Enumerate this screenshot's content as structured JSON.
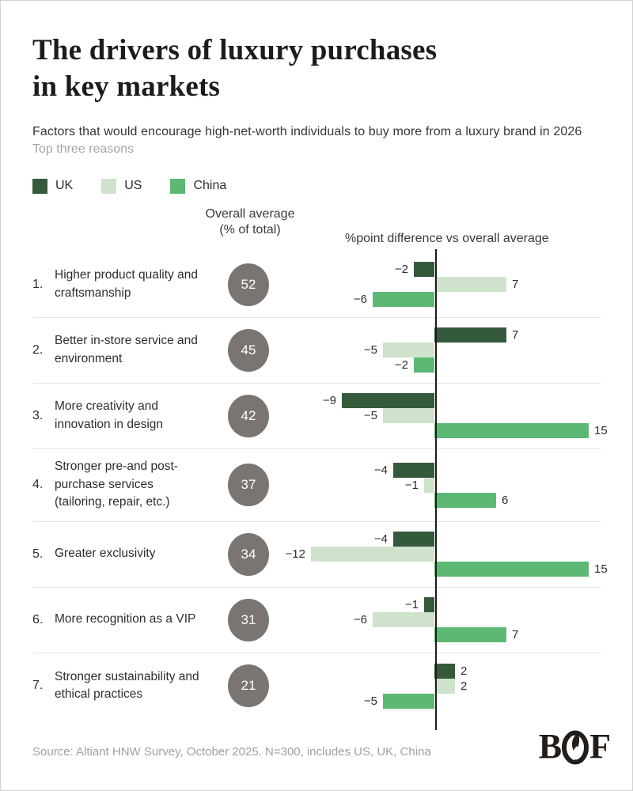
{
  "header": {
    "title_line1": "The drivers of luxury purchases",
    "title_line2": "in key markets",
    "subtitle": "Factors that would encourage high-net-worth individuals to buy more from a luxury brand in 2026",
    "subnote": "Top three reasons"
  },
  "legend": [
    {
      "label": "UK",
      "color": "#35593b"
    },
    {
      "label": "US",
      "color": "#cfe3cc"
    },
    {
      "label": "China",
      "color": "#5cb873"
    }
  ],
  "columns": {
    "average_header_line1": "Overall average",
    "average_header_line2": "(% of total)",
    "diff_header": "%point difference vs overall average"
  },
  "chart_data": {
    "type": "bar",
    "subtype": "horizontal-diverging",
    "title": "The drivers of luxury purchases in key markets",
    "series_names": [
      "UK",
      "US",
      "China"
    ],
    "xlim": [
      -15,
      15
    ],
    "value_unit": "percentage points vs overall average",
    "rows": [
      {
        "rank": "1.",
        "label": "Higher product quality and craftsmanship",
        "average": 52,
        "values": {
          "UK": -2,
          "US": 7,
          "China": -6
        }
      },
      {
        "rank": "2.",
        "label": "Better in-store service and environment",
        "average": 45,
        "values": {
          "UK": 7,
          "US": -5,
          "China": -2
        }
      },
      {
        "rank": "3.",
        "label": "More creativity and innovation in design",
        "average": 42,
        "values": {
          "UK": -9,
          "US": -5,
          "China": 15
        }
      },
      {
        "rank": "4.",
        "label": "Stronger pre-and post-purchase services (tailoring, repair, etc.)",
        "average": 37,
        "values": {
          "UK": -4,
          "US": -1,
          "China": 6
        }
      },
      {
        "rank": "5.",
        "label": "Greater exclusivity",
        "average": 34,
        "values": {
          "UK": -4,
          "US": -12,
          "China": 15
        }
      },
      {
        "rank": "6.",
        "label": "More recognition as a VIP",
        "average": 31,
        "values": {
          "UK": -1,
          "US": -6,
          "China": 7
        }
      },
      {
        "rank": "7.",
        "label": "Stronger sustainability and ethical practices",
        "average": 21,
        "values": {
          "UK": 2,
          "US": 2,
          "China": -5
        }
      }
    ]
  },
  "colors": {
    "uk": "#35593b",
    "us": "#cfe3cc",
    "china": "#5cb873",
    "circle": "#7b7572",
    "axis": "#1b1b1b",
    "separator": "#e4e4e4"
  },
  "footer": {
    "source": "Source: Altiant HNW Survey, October 2025. N=300, includes US, UK, China",
    "logo_text": "BOF"
  }
}
